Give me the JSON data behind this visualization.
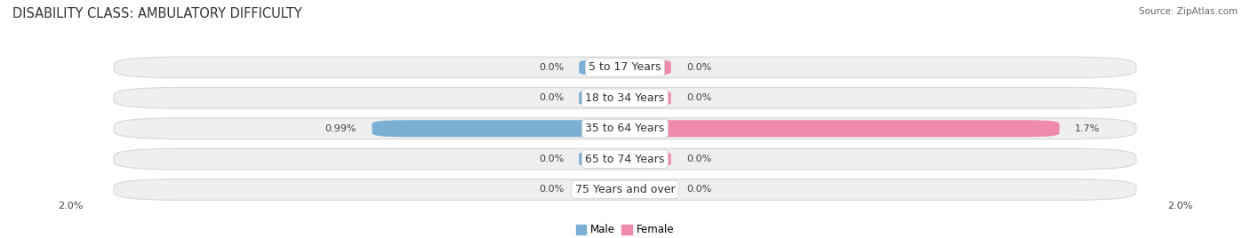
{
  "title": "DISABILITY CLASS: AMBULATORY DIFFICULTY",
  "source": "Source: ZipAtlas.com",
  "categories": [
    "5 to 17 Years",
    "18 to 34 Years",
    "35 to 64 Years",
    "65 to 74 Years",
    "75 Years and over"
  ],
  "male_values": [
    0.0,
    0.0,
    0.99,
    0.0,
    0.0
  ],
  "female_values": [
    0.0,
    0.0,
    1.7,
    0.0,
    0.0
  ],
  "male_labels": [
    "0.0%",
    "0.0%",
    "0.99%",
    "0.0%",
    "0.0%"
  ],
  "female_labels": [
    "0.0%",
    "0.0%",
    "1.7%",
    "0.0%",
    "0.0%"
  ],
  "male_color": "#7bafd4",
  "female_color": "#f08aaa",
  "row_bg_color": "#efefef",
  "row_border_color": "#d8d8d8",
  "max_value": 2.0,
  "axis_label_left": "2.0%",
  "axis_label_right": "2.0%",
  "legend_male": "Male",
  "legend_female": "Female",
  "title_fontsize": 10.5,
  "label_fontsize": 8.0,
  "category_fontsize": 9.0,
  "background_color": "#ffffff",
  "stub_value": 0.18
}
